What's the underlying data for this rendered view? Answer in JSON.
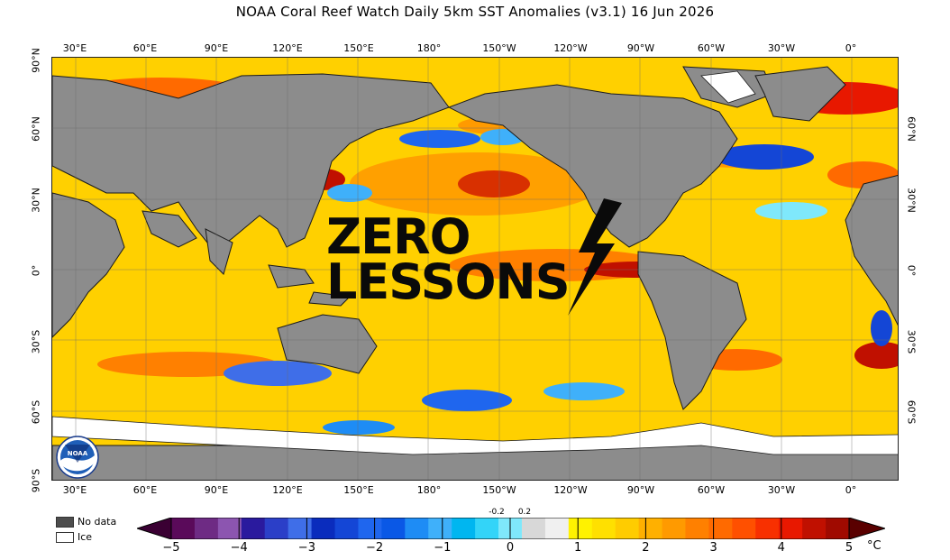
{
  "title": "NOAA Coral Reef Watch Daily 5km SST Anomalies  (v3.1)    16 Jun 2026",
  "map": {
    "longitude_labels": [
      "30°E",
      "60°E",
      "90°E",
      "120°E",
      "150°E",
      "180°",
      "150°W",
      "120°W",
      "90°W",
      "60°W",
      "30°W",
      "0°"
    ],
    "latitude_labels_left": [
      "90°N",
      "60°N",
      "30°N",
      "0°",
      "30°S",
      "60°S",
      "90°S"
    ],
    "latitude_labels_right": [
      "60°N",
      "30°N",
      "0°",
      "30°S",
      "60°S"
    ],
    "land_color": "#8c8c8c",
    "ice_color": "#ffffff",
    "coastline_color": "#1a1a1a"
  },
  "watermark": {
    "line1": "ZERO",
    "line2": "LESSONS",
    "icon": "lightning-bolt-icon"
  },
  "logo": {
    "icon": "noaa-logo-icon",
    "text": "NOAA"
  },
  "legend": {
    "no_data_label": "No data",
    "no_data_color": "#4d4d4d",
    "ice_label": "Ice",
    "ice_color": "#ffffff"
  },
  "colorbar": {
    "tick_labels": [
      "−5",
      "−4",
      "−3",
      "−2",
      "−1",
      "0",
      "1",
      "2",
      "3",
      "4",
      "5"
    ],
    "neutral_labels": [
      "-0.2",
      "0.2"
    ],
    "unit": "°C",
    "colors": [
      "#3a0033",
      "#5a0a5a",
      "#6e2b84",
      "#8c55b0",
      "#2a1a9e",
      "#2b3fc8",
      "#3f6ee8",
      "#0a2cbd",
      "#1446d6",
      "#1f66ee",
      "#0a58e6",
      "#1e8cf5",
      "#3fb0fa",
      "#00b6f0",
      "#33d4f8",
      "#7fe8fb",
      "#d8d8d8",
      "#f0f0f0",
      "#fff200",
      "#ffe000",
      "#ffcc00",
      "#ffb000",
      "#ff9a00",
      "#ff8000",
      "#ff6a00",
      "#ff5000",
      "#f83000",
      "#e81800",
      "#c01000",
      "#a00a00",
      "#5a0000"
    ]
  }
}
